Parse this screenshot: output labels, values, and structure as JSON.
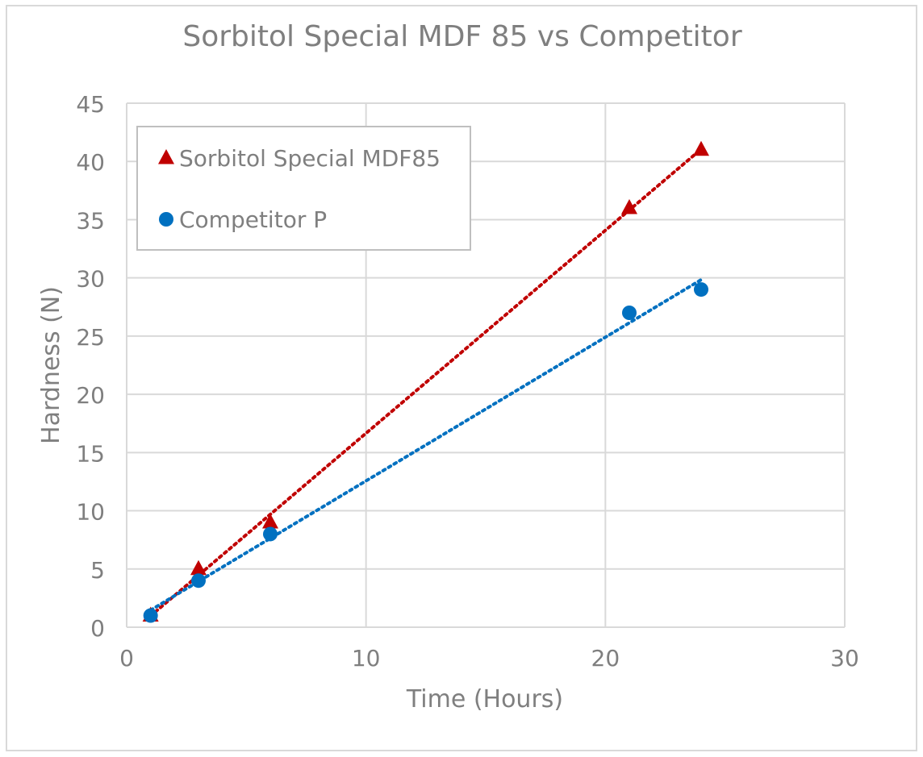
{
  "chart_data": {
    "type": "scatter",
    "title": "Sorbitol Special MDF 85 vs Competitor",
    "xlabel": "Time (Hours)",
    "ylabel": "Hardness (N)",
    "xlim": [
      0,
      30
    ],
    "ylim": [
      0,
      45
    ],
    "xticks": [
      0,
      10,
      20,
      30
    ],
    "yticks": [
      0,
      5,
      10,
      15,
      20,
      25,
      30,
      35,
      40,
      45
    ],
    "grid": true,
    "legend_position": "top-left",
    "series": [
      {
        "name": "Sorbitol Special MDF85",
        "marker": "triangle",
        "color": "#c00000",
        "trendline": "linear-dotted",
        "x": [
          1,
          3,
          6,
          21,
          24
        ],
        "y": [
          1,
          5,
          9,
          36,
          41
        ]
      },
      {
        "name": "Competitor P",
        "marker": "circle",
        "color": "#0070c0",
        "trendline": "linear-dotted",
        "x": [
          1,
          3,
          6,
          21,
          24
        ],
        "y": [
          1,
          4,
          8,
          27,
          29
        ]
      }
    ]
  },
  "colors": {
    "text": "#7f7f7f",
    "grid": "#d9d9d9",
    "frame": "#d9d9d9"
  }
}
